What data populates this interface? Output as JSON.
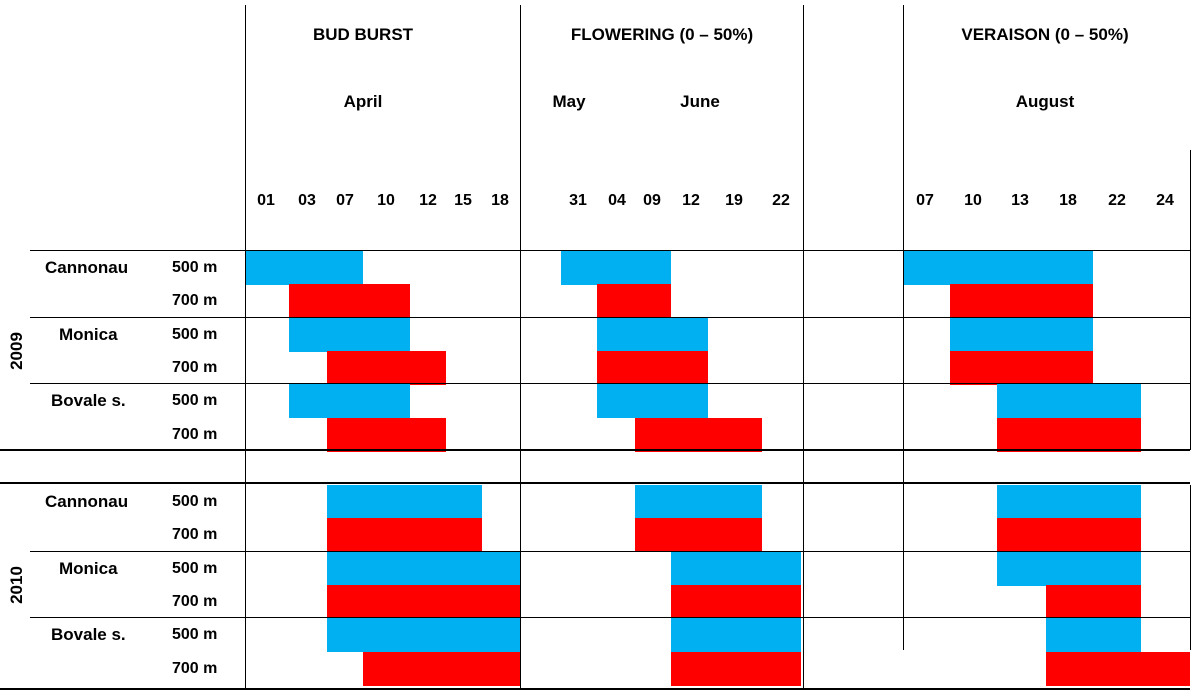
{
  "chart_data": {
    "type": "table",
    "phases": [
      {
        "title": "BUD BURST",
        "months": [
          "April"
        ],
        "ticks": [
          "01",
          "03",
          "07",
          "10",
          "12",
          "15",
          "18"
        ]
      },
      {
        "title": "FLOWERING (0 – 50%)",
        "months": [
          "May",
          "June"
        ],
        "ticks": [
          "31",
          "04",
          "09",
          "12",
          "19",
          "22"
        ]
      },
      {
        "title": "VERAISON (0 – 50%)",
        "months": [
          "August"
        ],
        "ticks": [
          "07",
          "10",
          "13",
          "18",
          "22",
          "24"
        ]
      }
    ],
    "years": [
      {
        "year": "2009",
        "varieties": [
          {
            "name": "Cannonau",
            "rows": [
              {
                "altitude": "500 m",
                "series": "500 m",
                "budburst": [
                  "01",
                  "07"
                ],
                "flowering": [
                  "31",
                  "09"
                ],
                "veraison": [
                  "07",
                  "18"
                ]
              },
              {
                "altitude": "700 m",
                "series": "700 m",
                "budburst": [
                  "03",
                  "10"
                ],
                "flowering": [
                  "04",
                  "09"
                ],
                "veraison": [
                  "10",
                  "18"
                ]
              }
            ]
          },
          {
            "name": "Monica",
            "rows": [
              {
                "altitude": "500 m",
                "series": "500 m",
                "budburst": [
                  "03",
                  "10"
                ],
                "flowering": [
                  "04",
                  "12"
                ],
                "veraison": [
                  "10",
                  "18"
                ]
              },
              {
                "altitude": "700 m",
                "series": "700 m",
                "budburst": [
                  "07",
                  "12"
                ],
                "flowering": [
                  "04",
                  "12"
                ],
                "veraison": [
                  "10",
                  "18"
                ]
              }
            ]
          },
          {
            "name": "Bovale s.",
            "rows": [
              {
                "altitude": "500 m",
                "series": "500 m",
                "budburst": [
                  "03",
                  "10"
                ],
                "flowering": [
                  "04",
                  "12"
                ],
                "veraison": [
                  "13",
                  "22"
                ]
              },
              {
                "altitude": "700 m",
                "series": "700 m",
                "budburst": [
                  "07",
                  "12"
                ],
                "flowering": [
                  "09",
                  "19"
                ],
                "veraison": [
                  "13",
                  "22"
                ]
              }
            ]
          }
        ]
      },
      {
        "year": "2010",
        "varieties": [
          {
            "name": "Cannonau",
            "rows": [
              {
                "altitude": "500 m",
                "series": "500 m",
                "budburst": [
                  "07",
                  "15"
                ],
                "flowering": [
                  "09",
                  "19"
                ],
                "veraison": [
                  "13",
                  "22"
                ]
              },
              {
                "altitude": "700 m",
                "series": "700 m",
                "budburst": [
                  "07",
                  "15"
                ],
                "flowering": [
                  "09",
                  "19"
                ],
                "veraison": [
                  "13",
                  "22"
                ]
              }
            ]
          },
          {
            "name": "Monica",
            "rows": [
              {
                "altitude": "500 m",
                "series": "500 m",
                "budburst": [
                  "07",
                  "18"
                ],
                "flowering": [
                  "12",
                  "22"
                ],
                "veraison": [
                  "13",
                  "22"
                ]
              },
              {
                "altitude": "700 m",
                "series": "700 m",
                "budburst": [
                  "07",
                  "18"
                ],
                "flowering": [
                  "12",
                  "22"
                ],
                "veraison": [
                  "18",
                  "22"
                ]
              }
            ]
          },
          {
            "name": "Bovale s.",
            "rows": [
              {
                "altitude": "500 m",
                "series": "500 m",
                "budburst": [
                  "07",
                  "18"
                ],
                "flowering": [
                  "12",
                  "22"
                ],
                "veraison": [
                  "18",
                  "22"
                ]
              },
              {
                "altitude": "700 m",
                "series": "700 m",
                "budburst": [
                  "10",
                  "18"
                ],
                "flowering": [
                  "12",
                  "22"
                ],
                "veraison": [
                  "18",
                  "24"
                ]
              }
            ]
          }
        ]
      }
    ],
    "series_colors": {
      "500 m": "#00b0f0",
      "700 m": "#ff0000"
    },
    "grid": true
  }
}
